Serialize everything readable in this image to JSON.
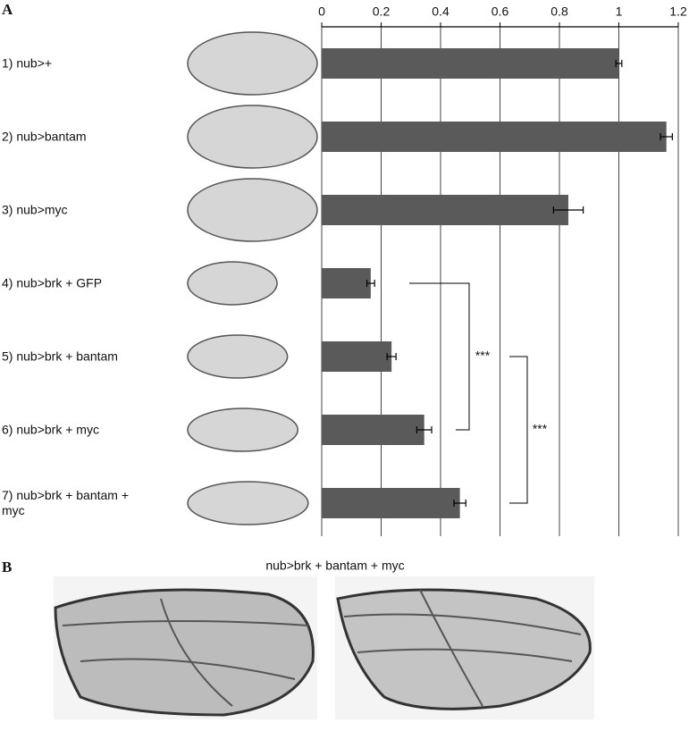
{
  "panel_labels": [
    "A",
    "B"
  ],
  "panel_b_title": "nub>brk + bantam + myc",
  "chart_data": {
    "type": "barh",
    "categories": [
      "1) nub>+",
      "2) nub>bantam",
      "3) nub>myc",
      "4) nub>brk + GFP",
      "5) nub>brk + bantam",
      "6) nub>brk + myc",
      "7) nub>brk + bantam + myc"
    ],
    "values": [
      1.0,
      1.16,
      0.83,
      0.165,
      0.235,
      0.345,
      0.465
    ],
    "errors": [
      0.01,
      0.02,
      0.05,
      0.013,
      0.015,
      0.025,
      0.02
    ],
    "color": "#5a5a5a",
    "xlim": [
      0,
      1.2
    ],
    "xticks": [
      0,
      0.2,
      0.4,
      0.6,
      0.8,
      1,
      1.2
    ],
    "grid": true,
    "annotations": [
      "***",
      "***"
    ]
  }
}
